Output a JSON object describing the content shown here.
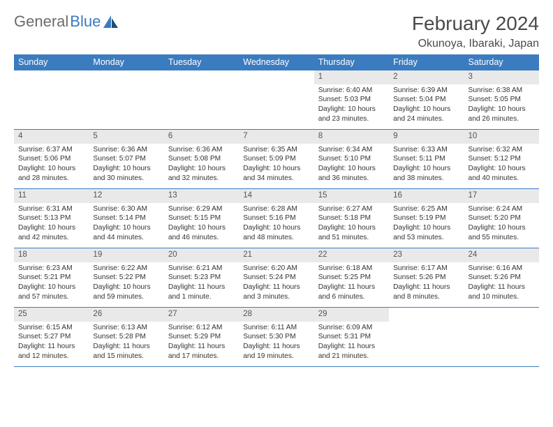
{
  "logo": {
    "part1": "General",
    "part2": "Blue"
  },
  "title": "February 2024",
  "location": "Okunoya, Ibaraki, Japan",
  "colors": {
    "header_bg": "#3b7bbf",
    "header_text": "#ffffff",
    "daynum_bg": "#e9e9e9",
    "body_text": "#333333",
    "rule": "#3b7bbf",
    "page_bg": "#ffffff",
    "title_text": "#4a4a4a"
  },
  "typography": {
    "month_title_pt": 21,
    "location_pt": 12,
    "weekday_pt": 9.5,
    "daynum_pt": 8.5,
    "body_pt": 7.7
  },
  "weekdays": [
    "Sunday",
    "Monday",
    "Tuesday",
    "Wednesday",
    "Thursday",
    "Friday",
    "Saturday"
  ],
  "weeks": [
    [
      {
        "empty": true
      },
      {
        "empty": true
      },
      {
        "empty": true
      },
      {
        "empty": true
      },
      {
        "day": "1",
        "sunrise": "Sunrise: 6:40 AM",
        "sunset": "Sunset: 5:03 PM",
        "daylight": "Daylight: 10 hours and 23 minutes."
      },
      {
        "day": "2",
        "sunrise": "Sunrise: 6:39 AM",
        "sunset": "Sunset: 5:04 PM",
        "daylight": "Daylight: 10 hours and 24 minutes."
      },
      {
        "day": "3",
        "sunrise": "Sunrise: 6:38 AM",
        "sunset": "Sunset: 5:05 PM",
        "daylight": "Daylight: 10 hours and 26 minutes."
      }
    ],
    [
      {
        "day": "4",
        "sunrise": "Sunrise: 6:37 AM",
        "sunset": "Sunset: 5:06 PM",
        "daylight": "Daylight: 10 hours and 28 minutes."
      },
      {
        "day": "5",
        "sunrise": "Sunrise: 6:36 AM",
        "sunset": "Sunset: 5:07 PM",
        "daylight": "Daylight: 10 hours and 30 minutes."
      },
      {
        "day": "6",
        "sunrise": "Sunrise: 6:36 AM",
        "sunset": "Sunset: 5:08 PM",
        "daylight": "Daylight: 10 hours and 32 minutes."
      },
      {
        "day": "7",
        "sunrise": "Sunrise: 6:35 AM",
        "sunset": "Sunset: 5:09 PM",
        "daylight": "Daylight: 10 hours and 34 minutes."
      },
      {
        "day": "8",
        "sunrise": "Sunrise: 6:34 AM",
        "sunset": "Sunset: 5:10 PM",
        "daylight": "Daylight: 10 hours and 36 minutes."
      },
      {
        "day": "9",
        "sunrise": "Sunrise: 6:33 AM",
        "sunset": "Sunset: 5:11 PM",
        "daylight": "Daylight: 10 hours and 38 minutes."
      },
      {
        "day": "10",
        "sunrise": "Sunrise: 6:32 AM",
        "sunset": "Sunset: 5:12 PM",
        "daylight": "Daylight: 10 hours and 40 minutes."
      }
    ],
    [
      {
        "day": "11",
        "sunrise": "Sunrise: 6:31 AM",
        "sunset": "Sunset: 5:13 PM",
        "daylight": "Daylight: 10 hours and 42 minutes."
      },
      {
        "day": "12",
        "sunrise": "Sunrise: 6:30 AM",
        "sunset": "Sunset: 5:14 PM",
        "daylight": "Daylight: 10 hours and 44 minutes."
      },
      {
        "day": "13",
        "sunrise": "Sunrise: 6:29 AM",
        "sunset": "Sunset: 5:15 PM",
        "daylight": "Daylight: 10 hours and 46 minutes."
      },
      {
        "day": "14",
        "sunrise": "Sunrise: 6:28 AM",
        "sunset": "Sunset: 5:16 PM",
        "daylight": "Daylight: 10 hours and 48 minutes."
      },
      {
        "day": "15",
        "sunrise": "Sunrise: 6:27 AM",
        "sunset": "Sunset: 5:18 PM",
        "daylight": "Daylight: 10 hours and 51 minutes."
      },
      {
        "day": "16",
        "sunrise": "Sunrise: 6:25 AM",
        "sunset": "Sunset: 5:19 PM",
        "daylight": "Daylight: 10 hours and 53 minutes."
      },
      {
        "day": "17",
        "sunrise": "Sunrise: 6:24 AM",
        "sunset": "Sunset: 5:20 PM",
        "daylight": "Daylight: 10 hours and 55 minutes."
      }
    ],
    [
      {
        "day": "18",
        "sunrise": "Sunrise: 6:23 AM",
        "sunset": "Sunset: 5:21 PM",
        "daylight": "Daylight: 10 hours and 57 minutes."
      },
      {
        "day": "19",
        "sunrise": "Sunrise: 6:22 AM",
        "sunset": "Sunset: 5:22 PM",
        "daylight": "Daylight: 10 hours and 59 minutes."
      },
      {
        "day": "20",
        "sunrise": "Sunrise: 6:21 AM",
        "sunset": "Sunset: 5:23 PM",
        "daylight": "Daylight: 11 hours and 1 minute."
      },
      {
        "day": "21",
        "sunrise": "Sunrise: 6:20 AM",
        "sunset": "Sunset: 5:24 PM",
        "daylight": "Daylight: 11 hours and 3 minutes."
      },
      {
        "day": "22",
        "sunrise": "Sunrise: 6:18 AM",
        "sunset": "Sunset: 5:25 PM",
        "daylight": "Daylight: 11 hours and 6 minutes."
      },
      {
        "day": "23",
        "sunrise": "Sunrise: 6:17 AM",
        "sunset": "Sunset: 5:26 PM",
        "daylight": "Daylight: 11 hours and 8 minutes."
      },
      {
        "day": "24",
        "sunrise": "Sunrise: 6:16 AM",
        "sunset": "Sunset: 5:26 PM",
        "daylight": "Daylight: 11 hours and 10 minutes."
      }
    ],
    [
      {
        "day": "25",
        "sunrise": "Sunrise: 6:15 AM",
        "sunset": "Sunset: 5:27 PM",
        "daylight": "Daylight: 11 hours and 12 minutes."
      },
      {
        "day": "26",
        "sunrise": "Sunrise: 6:13 AM",
        "sunset": "Sunset: 5:28 PM",
        "daylight": "Daylight: 11 hours and 15 minutes."
      },
      {
        "day": "27",
        "sunrise": "Sunrise: 6:12 AM",
        "sunset": "Sunset: 5:29 PM",
        "daylight": "Daylight: 11 hours and 17 minutes."
      },
      {
        "day": "28",
        "sunrise": "Sunrise: 6:11 AM",
        "sunset": "Sunset: 5:30 PM",
        "daylight": "Daylight: 11 hours and 19 minutes."
      },
      {
        "day": "29",
        "sunrise": "Sunrise: 6:09 AM",
        "sunset": "Sunset: 5:31 PM",
        "daylight": "Daylight: 11 hours and 21 minutes."
      },
      {
        "empty": true
      },
      {
        "empty": true
      }
    ]
  ]
}
